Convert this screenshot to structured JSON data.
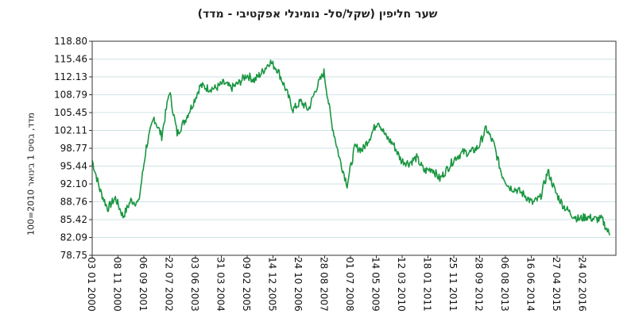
{
  "chart_data": {
    "type": "line",
    "title": "שער חליפין (שקל/סל-   נומינלי אפקטיבי - מדד)",
    "ylabel": "מדד, בסיס 1 בינואר 2010=100",
    "xlabel": "",
    "ylim": [
      78.75,
      118.8
    ],
    "y_ticks": [
      "118.80",
      "115.46",
      "112.13",
      "108.79",
      "105.45",
      "102.11",
      "98.77",
      "95.44",
      "92.10",
      "88.76",
      "85.42",
      "82.09",
      "78.75"
    ],
    "x_ticks": [
      "03 01 2000",
      "08 11 2000",
      "06 09 2001",
      "22 07 2002",
      "03 06 2003",
      "31 03 2004",
      "09 02 2005",
      "14 12 2005",
      "24 10 2006",
      "28 08 2007",
      "01 07 2008",
      "14 05 2009",
      "12 03 2010",
      "18 01 2011",
      "25 11 2011",
      "28 09 2012",
      "06 08 2013",
      "16 06 2014",
      "27 04 2015",
      "24 02 2016"
    ],
    "grid": "horizontal",
    "colors": {
      "series": "#1a9641",
      "grid": "#cfe3e6",
      "axis": "#333333"
    },
    "series": [
      {
        "x": [
          "2000-01",
          "2000-04",
          "2000-07",
          "2000-10",
          "2001-01",
          "2001-04",
          "2001-07",
          "2001-10",
          "2002-01",
          "2002-04",
          "2002-07",
          "2002-10",
          "2003-01",
          "2003-04",
          "2003-07",
          "2003-10",
          "2004-01",
          "2004-04",
          "2004-07",
          "2004-10",
          "2005-01",
          "2005-04",
          "2005-07",
          "2005-10",
          "2006-01",
          "2006-04",
          "2006-07",
          "2006-10",
          "2007-01",
          "2007-04",
          "2007-07",
          "2007-10",
          "2008-01",
          "2008-04",
          "2008-07",
          "2008-10",
          "2009-01",
          "2009-04",
          "2009-07",
          "2009-10",
          "2010-01",
          "2010-04",
          "2010-07",
          "2010-10",
          "2011-01",
          "2011-04",
          "2011-07",
          "2011-10",
          "2012-01",
          "2012-04",
          "2012-07",
          "2012-10",
          "2013-01",
          "2013-04",
          "2013-07",
          "2013-10",
          "2014-01",
          "2014-04",
          "2014-07",
          "2014-10",
          "2015-01",
          "2015-04",
          "2015-07",
          "2015-10",
          "2016-01",
          "2016-04",
          "2016-07",
          "2016-10"
        ],
        "values": [
          96.5,
          91.0,
          87.5,
          89.5,
          86.0,
          89.0,
          88.5,
          99.0,
          104.5,
          101.0,
          109.5,
          101.5,
          104.0,
          107.0,
          110.5,
          110.0,
          110.0,
          111.0,
          110.0,
          111.0,
          112.5,
          111.5,
          113.0,
          115.0,
          113.5,
          110.0,
          106.0,
          107.5,
          106.0,
          110.0,
          113.0,
          103.5,
          97.0,
          92.0,
          99.0,
          98.5,
          101.0,
          104.0,
          101.0,
          99.5,
          96.5,
          96.0,
          97.0,
          94.5,
          95.0,
          93.0,
          95.0,
          97.0,
          98.0,
          98.0,
          99.0,
          102.5,
          99.5,
          94.0,
          91.5,
          91.0,
          90.0,
          88.5,
          89.5,
          94.5,
          90.5,
          88.0,
          86.5,
          85.5,
          86.0,
          85.5,
          85.5,
          82.5
        ]
      }
    ]
  }
}
